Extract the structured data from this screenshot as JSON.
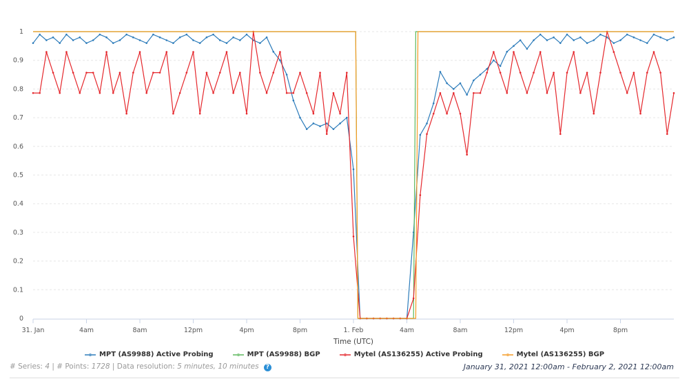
{
  "chart_data": {
    "type": "line",
    "xlabel": "Time (UTC)",
    "ylabel": "",
    "xlim": [
      "2021-01-31 00:00",
      "2021-02-02 00:00"
    ],
    "ylim": [
      0,
      1
    ],
    "grid": true,
    "legend_position": "bottom",
    "x_ticks": [
      {
        "t": "2021-01-31 00:00",
        "label": "31. Jan"
      },
      {
        "t": "2021-01-31 04:00",
        "label": "4am"
      },
      {
        "t": "2021-01-31 08:00",
        "label": "8am"
      },
      {
        "t": "2021-01-31 12:00",
        "label": "12pm"
      },
      {
        "t": "2021-01-31 16:00",
        "label": "4pm"
      },
      {
        "t": "2021-01-31 20:00",
        "label": "8pm"
      },
      {
        "t": "2021-02-01 00:00",
        "label": "1. Feb"
      },
      {
        "t": "2021-02-01 04:00",
        "label": "4am"
      },
      {
        "t": "2021-02-01 08:00",
        "label": "8am"
      },
      {
        "t": "2021-02-01 12:00",
        "label": "12pm"
      },
      {
        "t": "2021-02-01 16:00",
        "label": "4pm"
      },
      {
        "t": "2021-02-01 20:00",
        "label": "8pm"
      }
    ],
    "y_ticks": [
      "0",
      "0.1",
      "0.2",
      "0.3",
      "0.4",
      "0.5",
      "0.6",
      "0.7",
      "0.8",
      "0.9",
      "1"
    ],
    "probing_x": [
      "2021-01-31 00:00",
      "2021-01-31 00:30",
      "2021-01-31 01:00",
      "2021-01-31 01:30",
      "2021-01-31 02:00",
      "2021-01-31 02:30",
      "2021-01-31 03:00",
      "2021-01-31 03:30",
      "2021-01-31 04:00",
      "2021-01-31 04:30",
      "2021-01-31 05:00",
      "2021-01-31 05:30",
      "2021-01-31 06:00",
      "2021-01-31 06:30",
      "2021-01-31 07:00",
      "2021-01-31 07:30",
      "2021-01-31 08:00",
      "2021-01-31 08:30",
      "2021-01-31 09:00",
      "2021-01-31 09:30",
      "2021-01-31 10:00",
      "2021-01-31 10:30",
      "2021-01-31 11:00",
      "2021-01-31 11:30",
      "2021-01-31 12:00",
      "2021-01-31 12:30",
      "2021-01-31 13:00",
      "2021-01-31 13:30",
      "2021-01-31 14:00",
      "2021-01-31 14:30",
      "2021-01-31 15:00",
      "2021-01-31 15:30",
      "2021-01-31 16:00",
      "2021-01-31 16:30",
      "2021-01-31 17:00",
      "2021-01-31 17:30",
      "2021-01-31 18:00",
      "2021-01-31 18:30",
      "2021-01-31 19:00",
      "2021-01-31 19:30",
      "2021-01-31 20:00",
      "2021-01-31 20:30",
      "2021-01-31 21:00",
      "2021-01-31 21:30",
      "2021-01-31 22:00",
      "2021-01-31 22:30",
      "2021-01-31 23:00",
      "2021-01-31 23:30",
      "2021-02-01 00:00",
      "2021-02-01 00:30",
      "2021-02-01 01:00",
      "2021-02-01 01:30",
      "2021-02-01 02:00",
      "2021-02-01 02:30",
      "2021-02-01 03:00",
      "2021-02-01 03:30",
      "2021-02-01 04:00",
      "2021-02-01 04:30",
      "2021-02-01 05:00",
      "2021-02-01 05:30",
      "2021-02-01 06:00",
      "2021-02-01 06:30",
      "2021-02-01 07:00",
      "2021-02-01 07:30",
      "2021-02-01 08:00",
      "2021-02-01 08:30",
      "2021-02-01 09:00",
      "2021-02-01 09:30",
      "2021-02-01 10:00",
      "2021-02-01 10:30",
      "2021-02-01 11:00",
      "2021-02-01 11:30",
      "2021-02-01 12:00",
      "2021-02-01 12:30",
      "2021-02-01 13:00",
      "2021-02-01 13:30",
      "2021-02-01 14:00",
      "2021-02-01 14:30",
      "2021-02-01 15:00",
      "2021-02-01 15:30",
      "2021-02-01 16:00",
      "2021-02-01 16:30",
      "2021-02-01 17:00",
      "2021-02-01 17:30",
      "2021-02-01 18:00",
      "2021-02-01 18:30",
      "2021-02-01 19:00",
      "2021-02-01 19:30",
      "2021-02-01 20:00",
      "2021-02-01 20:30",
      "2021-02-01 21:00",
      "2021-02-01 21:30",
      "2021-02-01 22:00",
      "2021-02-01 22:30",
      "2021-02-01 23:00",
      "2021-02-01 23:30",
      "2021-02-02 00:00"
    ],
    "series": [
      {
        "name": "MPT (AS9988) Active Probing",
        "color": "#2b7bba",
        "markers": true,
        "values": [
          0.96,
          0.99,
          0.97,
          0.98,
          0.96,
          0.99,
          0.97,
          0.98,
          0.96,
          0.97,
          0.99,
          0.98,
          0.96,
          0.97,
          0.99,
          0.98,
          0.97,
          0.96,
          0.99,
          0.98,
          0.97,
          0.96,
          0.98,
          0.99,
          0.97,
          0.96,
          0.98,
          0.99,
          0.97,
          0.96,
          0.98,
          0.97,
          0.99,
          0.97,
          0.96,
          0.98,
          0.93,
          0.9,
          0.85,
          0.76,
          0.7,
          0.66,
          0.68,
          0.67,
          0.68,
          0.66,
          0.68,
          0.7,
          0.52,
          0,
          0,
          0,
          0,
          0,
          0,
          0,
          0,
          0.3,
          0.64,
          0.68,
          0.75,
          0.86,
          0.82,
          0.8,
          0.82,
          0.78,
          0.83,
          0.85,
          0.87,
          0.9,
          0.88,
          0.93,
          0.95,
          0.97,
          0.94,
          0.97,
          0.99,
          0.97,
          0.98,
          0.96,
          0.99,
          0.97,
          0.98,
          0.96,
          0.97,
          0.99,
          0.98,
          0.96,
          0.97,
          0.99,
          0.98,
          0.97,
          0.96,
          0.99,
          0.98,
          0.97,
          0.98
        ]
      },
      {
        "name": "MPT (AS9988) BGP",
        "color": "#5cb85c",
        "markers": false,
        "points": [
          [
            "2021-01-31 00:00",
            1
          ],
          [
            "2021-02-01 00:10",
            1
          ],
          [
            "2021-02-01 00:20",
            0
          ],
          [
            "2021-02-01 04:30",
            0
          ],
          [
            "2021-02-01 04:40",
            1
          ],
          [
            "2021-02-02 00:00",
            1
          ]
        ]
      },
      {
        "name": "Mytel (AS136255) Active Probing",
        "color": "#e5262b",
        "markers": true,
        "values": [
          0.786,
          0.786,
          0.929,
          0.857,
          0.786,
          0.929,
          0.857,
          0.786,
          0.857,
          0.857,
          0.786,
          0.929,
          0.786,
          0.857,
          0.714,
          0.857,
          0.929,
          0.786,
          0.857,
          0.857,
          0.929,
          0.714,
          0.786,
          0.857,
          0.929,
          0.714,
          0.857,
          0.786,
          0.857,
          0.929,
          0.786,
          0.857,
          0.714,
          1.0,
          0.857,
          0.786,
          0.857,
          0.929,
          0.786,
          0.786,
          0.857,
          0.786,
          0.714,
          0.857,
          0.643,
          0.786,
          0.714,
          0.857,
          0.286,
          0,
          0,
          0,
          0,
          0,
          0,
          0,
          0,
          0.07,
          0.43,
          0.643,
          0.714,
          0.786,
          0.714,
          0.786,
          0.714,
          0.571,
          0.786,
          0.786,
          0.857,
          0.929,
          0.857,
          0.786,
          0.929,
          0.857,
          0.786,
          0.857,
          0.929,
          0.786,
          0.857,
          0.643,
          0.857,
          0.929,
          0.786,
          0.857,
          0.714,
          0.857,
          1.0,
          0.929,
          0.857,
          0.786,
          0.857,
          0.714,
          0.857,
          0.929,
          0.857,
          0.643,
          0.786
        ]
      },
      {
        "name": "Mytel (AS136255) BGP",
        "color": "#f59a23",
        "markers": false,
        "points": [
          [
            "2021-01-31 00:00",
            1
          ],
          [
            "2021-02-01 00:10",
            1
          ],
          [
            "2021-02-01 00:20",
            0
          ],
          [
            "2021-02-01 04:40",
            0
          ],
          [
            "2021-02-01 04:50",
            1
          ],
          [
            "2021-02-02 00:00",
            1
          ]
        ]
      }
    ]
  },
  "footer": {
    "series_label": "# Series:",
    "series_count": "4",
    "points_label": "| # Points:",
    "points_count": "1728",
    "resolution_label": "| Data resolution:",
    "resolution_value": "5 minutes, 10 minutes",
    "help_icon": "?",
    "date_range": "January 31, 2021 12:00am - February 2, 2021 12:00am"
  }
}
